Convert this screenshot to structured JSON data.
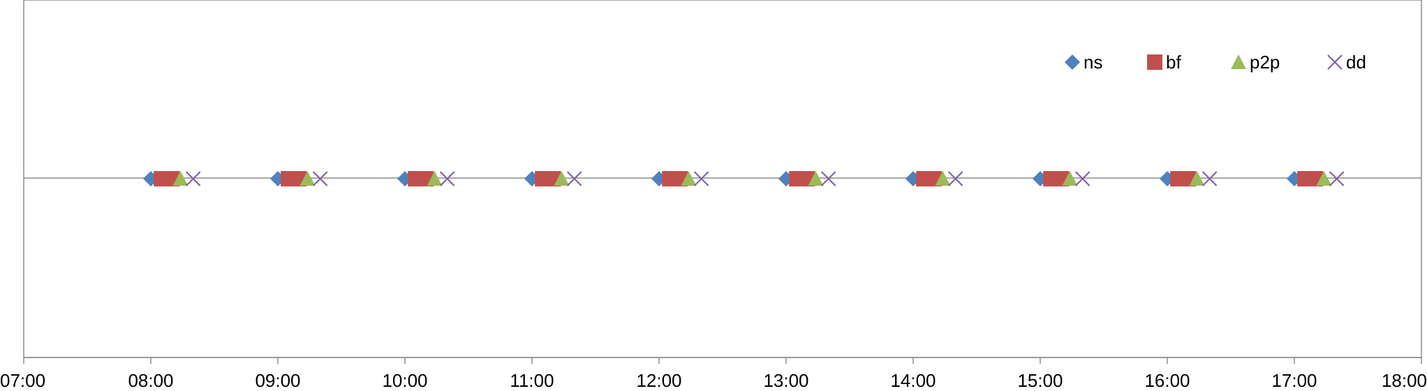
{
  "chart_data": {
    "type": "scatter",
    "title": "",
    "xlabel": "",
    "ylabel": "",
    "x_tick_labels": [
      "07:00",
      "08:00",
      "09:00",
      "10:00",
      "11:00",
      "12:00",
      "13:00",
      "14:00",
      "15:00",
      "16:00",
      "17:00",
      "18:00"
    ],
    "xlim": [
      "07:00",
      "18:00"
    ],
    "ylim": [
      -1,
      1
    ],
    "legend_position": "top-right",
    "gridlines": false,
    "series": [
      {
        "name": "ns",
        "marker": "diamond",
        "color": "#4F81BD",
        "x": [
          "08:00",
          "09:00",
          "10:00",
          "11:00",
          "12:00",
          "13:00",
          "14:00",
          "15:00",
          "16:00",
          "17:00"
        ],
        "y": [
          0,
          0,
          0,
          0,
          0,
          0,
          0,
          0,
          0,
          0
        ]
      },
      {
        "name": "bf",
        "marker": "square",
        "color": "#C0504D",
        "x": [
          "08:05",
          "09:05",
          "10:05",
          "11:05",
          "12:05",
          "13:05",
          "14:05",
          "15:05",
          "16:05",
          "17:05"
        ],
        "y": [
          0,
          0,
          0,
          0,
          0,
          0,
          0,
          0,
          0,
          0
        ]
      },
      {
        "name": "bf",
        "marker": "square",
        "color": "#C0504D",
        "legend": false,
        "x": [
          "08:08",
          "09:08",
          "10:08",
          "11:08",
          "12:08",
          "13:08",
          "14:08",
          "15:08",
          "16:08",
          "17:08"
        ],
        "y": [
          0,
          0,
          0,
          0,
          0,
          0,
          0,
          0,
          0,
          0
        ]
      },
      {
        "name": "bf",
        "marker": "square",
        "color": "#C0504D",
        "legend": false,
        "x": [
          "08:10",
          "09:10",
          "10:10",
          "11:10",
          "12:10",
          "13:10",
          "14:10",
          "15:10",
          "16:10",
          "17:10"
        ],
        "y": [
          0,
          0,
          0,
          0,
          0,
          0,
          0,
          0,
          0,
          0
        ]
      },
      {
        "name": "p2p",
        "marker": "triangle",
        "color": "#9BBB59",
        "x": [
          "08:14",
          "09:14",
          "10:14",
          "11:14",
          "12:14",
          "13:14",
          "14:14",
          "15:14",
          "16:14",
          "17:14"
        ],
        "y": [
          0,
          0,
          0,
          0,
          0,
          0,
          0,
          0,
          0,
          0
        ]
      },
      {
        "name": "dd",
        "marker": "x",
        "color": "#8064A2",
        "x": [
          "08:20",
          "09:20",
          "10:20",
          "11:20",
          "12:20",
          "13:20",
          "14:20",
          "15:20",
          "16:20",
          "17:20"
        ],
        "y": [
          0,
          0,
          0,
          0,
          0,
          0,
          0,
          0,
          0,
          0
        ]
      }
    ]
  }
}
